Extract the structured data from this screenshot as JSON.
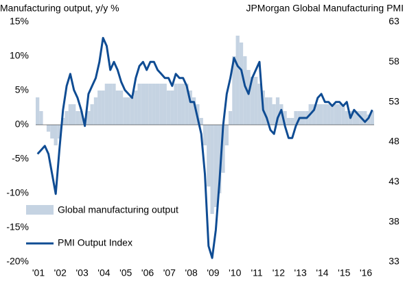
{
  "chart_data": {
    "type": "bar-line",
    "title": "Manufacturing output, y/y %",
    "subtitle": "JPMorgan Global Manufacturing PMI",
    "categories": [
      "'01",
      null,
      null,
      null,
      null,
      null,
      "'02",
      null,
      null,
      null,
      null,
      null,
      "'03",
      null,
      null,
      null,
      null,
      null,
      "'04",
      null,
      null,
      null,
      null,
      null,
      "'05",
      null,
      null,
      null,
      null,
      null,
      "'06",
      null,
      null,
      null,
      null,
      null,
      "'07",
      null,
      null,
      null,
      null,
      null,
      "'08",
      null,
      null,
      null,
      null,
      null,
      "'09",
      null,
      null,
      null,
      null,
      null,
      "'10",
      null,
      null,
      null,
      null,
      null,
      "'11",
      null,
      null,
      null,
      null,
      null,
      "'12",
      null,
      null,
      null,
      null,
      null,
      "'13",
      null,
      null,
      null,
      null,
      null,
      "'14",
      null,
      null,
      null,
      null,
      null,
      "'15",
      null,
      null,
      null,
      null,
      null,
      "'16",
      null,
      null
    ],
    "series": [
      {
        "name": "Global manufacturing output",
        "color": "#c5d3e2",
        "axis": "y",
        "values": [
          4,
          2,
          0,
          -1,
          -2,
          -3,
          -2,
          1,
          2,
          3,
          3,
          2,
          2,
          1,
          2,
          3,
          4,
          5,
          5,
          6,
          6,
          6,
          5,
          5,
          4,
          4,
          4,
          5,
          6,
          6,
          6,
          6,
          6,
          6,
          6,
          6,
          5,
          5,
          6,
          6,
          6,
          6,
          5,
          4,
          3,
          1,
          -3,
          -9,
          -13,
          -12,
          -10,
          -7,
          -3,
          2,
          10,
          13,
          12,
          10,
          8,
          7,
          7,
          6,
          5,
          4,
          4,
          3,
          4,
          3,
          2,
          1,
          1,
          2,
          2,
          2,
          2,
          3,
          3,
          3,
          3,
          3,
          3,
          3,
          3,
          3,
          3,
          2,
          2,
          2,
          2,
          2,
          2,
          1.5,
          2
        ]
      },
      {
        "name": "PMI Output Index",
        "color": "#0f4c93",
        "axis": "y2",
        "values": [
          46.5,
          47,
          47.5,
          46.5,
          44,
          41.5,
          47,
          52,
          55,
          56.5,
          54.5,
          53.5,
          52,
          50,
          54,
          55,
          56,
          58,
          61,
          60,
          57,
          58,
          57,
          55.5,
          54.5,
          54,
          53.5,
          56,
          57.5,
          58,
          57,
          58,
          58,
          57,
          56.5,
          56,
          56,
          55,
          56.5,
          56,
          56,
          55,
          53,
          53,
          51,
          49,
          44,
          35,
          33.5,
          37,
          43,
          50,
          54,
          56,
          58.5,
          57.5,
          57,
          55,
          54,
          56,
          57,
          58,
          52,
          51,
          49.5,
          49,
          51,
          52,
          50,
          48.5,
          48.5,
          50,
          51,
          51,
          51,
          51.5,
          52,
          53.5,
          54,
          53,
          53,
          52.5,
          53,
          53,
          52.5,
          53,
          51,
          52,
          51.5,
          51,
          50.5,
          51,
          52
        ]
      }
    ],
    "ylim": [
      -20,
      15
    ],
    "yticks": [
      {
        "value": -20,
        "label": "-20%"
      },
      {
        "value": -15,
        "label": "-15%"
      },
      {
        "value": -10,
        "label": "-10%"
      },
      {
        "value": -5,
        "label": "-5%"
      },
      {
        "value": 0,
        "label": "0%"
      },
      {
        "value": 5,
        "label": "5%"
      },
      {
        "value": 10,
        "label": "10%"
      },
      {
        "value": 15,
        "label": "15%"
      }
    ],
    "y2lim": [
      33,
      63
    ],
    "y2ticks": [
      33,
      38,
      43,
      48,
      53,
      58,
      63
    ],
    "legend": "lower-left"
  }
}
